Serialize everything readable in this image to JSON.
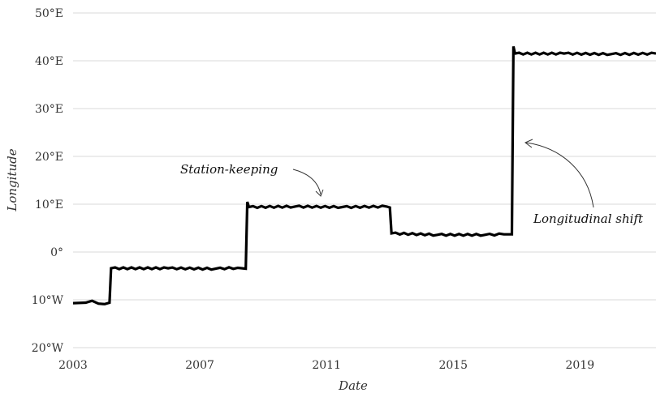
{
  "chart_data": {
    "type": "line",
    "xlabel": "Date",
    "ylabel": "Longitude",
    "xlim": [
      2003,
      2021.4
    ],
    "ylim": [
      -20,
      50
    ],
    "x_ticks": [
      2003,
      2007,
      2011,
      2015,
      2019
    ],
    "x_tick_labels": [
      "2003",
      "2007",
      "2011",
      "2015",
      "2019"
    ],
    "y_ticks": [
      -20,
      -10,
      0,
      10,
      20,
      30,
      40,
      50
    ],
    "y_tick_labels": [
      "20°W",
      "10°W",
      "0°",
      "10°E",
      "20°E",
      "30°E",
      "40°E",
      "50°E"
    ],
    "grid": "horizontal",
    "series": [
      {
        "color": "#000000",
        "x": [
          2003.0,
          2003.4,
          2003.6,
          2003.8,
          2004.0,
          2004.15,
          2004.2,
          2006.0,
          2007.5,
          2008.2,
          2008.45,
          2008.5,
          2008.55,
          2010.0,
          2011.5,
          2012.9,
          2013.0,
          2013.05,
          2014.5,
          2016.0,
          2016.6,
          2016.85,
          2016.9,
          2016.95,
          2018.5,
          2020.0,
          2021.4
        ],
        "y": [
          -10.7,
          -10.6,
          -10.2,
          -10.8,
          -10.9,
          -10.6,
          -3.4,
          -3.4,
          -3.5,
          -3.3,
          -3.5,
          10.5,
          9.4,
          9.5,
          9.4,
          9.5,
          9.3,
          3.9,
          3.6,
          3.6,
          3.7,
          3.7,
          43.0,
          41.5,
          41.5,
          41.4,
          41.5
        ]
      }
    ],
    "annotations": [
      {
        "text": "Station-keeping",
        "x": 2010.8,
        "y": 9.6
      },
      {
        "text": "Longitudinal shift",
        "x": 2017.0,
        "y": 22.5
      }
    ]
  }
}
